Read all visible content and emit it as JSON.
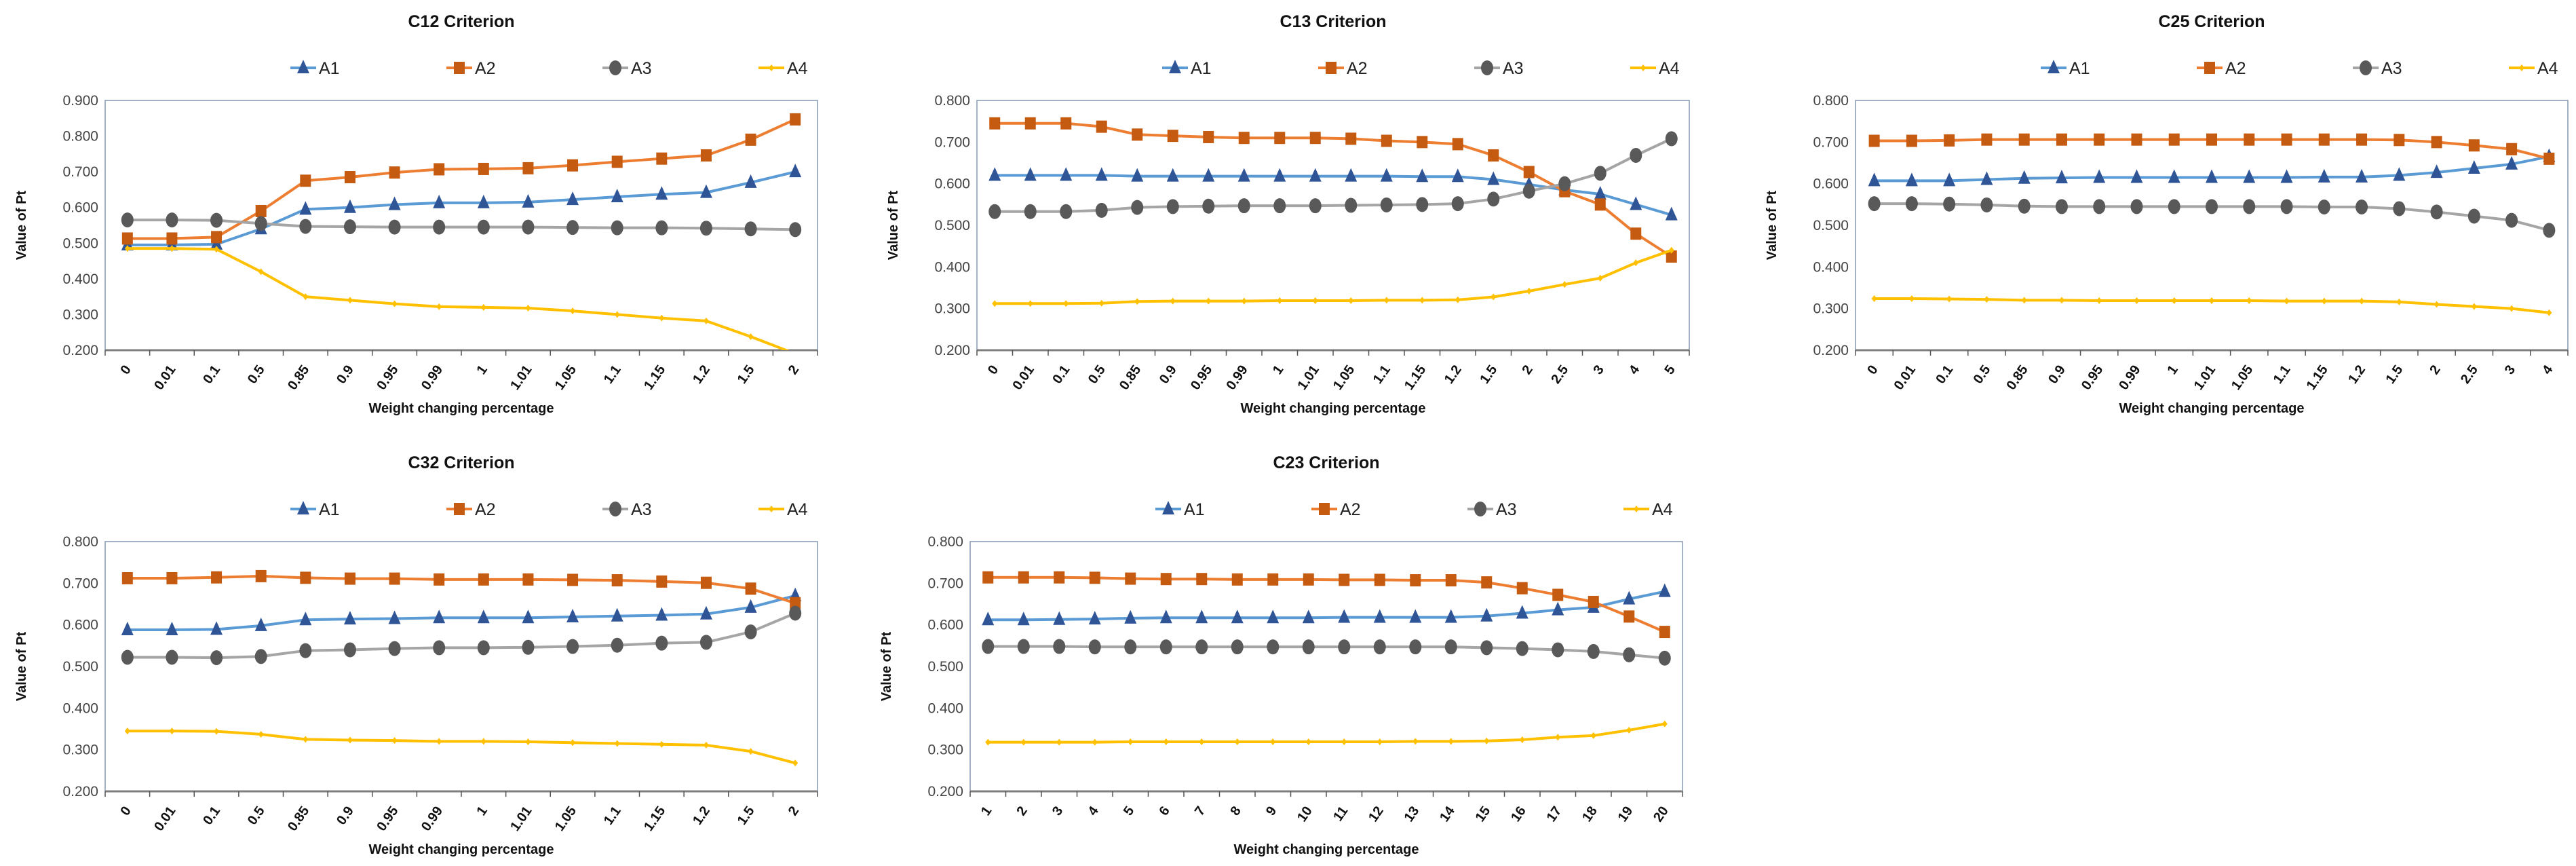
{
  "colors": {
    "A1_line": "#5b9bd5",
    "A1_marker": "#2f5597",
    "A2_line": "#ed7d31",
    "A2_marker": "#c55a11",
    "A3_line": "#a5a5a5",
    "A3_marker": "#595959",
    "A4_line": "#ffc000",
    "A4_marker": "#ffc000"
  },
  "chart_data": [
    {
      "type": "line",
      "title": "C12 Criterion",
      "xlabel": "Weight changing percentage",
      "ylabel": "Value of Pt",
      "ylim": [
        0.2,
        0.9
      ],
      "yticks": [
        "0.200",
        "0.300",
        "0.400",
        "0.500",
        "0.600",
        "0.700",
        "0.800",
        "0.900"
      ],
      "legend": "top",
      "categories": [
        "0",
        "0.01",
        "0.1",
        "0.5",
        "0.85",
        "0.9",
        "0.95",
        "0.99",
        "1",
        "1.01",
        "1.05",
        "1.1",
        "1.15",
        "1.2",
        "1.5",
        "2"
      ],
      "series": [
        {
          "name": "A1",
          "values": [
            0.495,
            0.495,
            0.497,
            0.54,
            0.595,
            0.6,
            0.608,
            0.613,
            0.613,
            0.615,
            0.622,
            0.63,
            0.637,
            0.642,
            0.67,
            0.7
          ]
        },
        {
          "name": "A2",
          "values": [
            0.513,
            0.513,
            0.517,
            0.59,
            0.675,
            0.685,
            0.698,
            0.707,
            0.708,
            0.71,
            0.718,
            0.728,
            0.737,
            0.746,
            0.79,
            0.847
          ]
        },
        {
          "name": "A3",
          "values": [
            0.565,
            0.565,
            0.564,
            0.555,
            0.547,
            0.546,
            0.545,
            0.545,
            0.545,
            0.545,
            0.544,
            0.543,
            0.543,
            0.542,
            0.54,
            0.538
          ]
        },
        {
          "name": "A4",
          "values": [
            0.485,
            0.485,
            0.483,
            0.42,
            0.35,
            0.34,
            0.33,
            0.322,
            0.32,
            0.318,
            0.31,
            0.3,
            0.29,
            0.282,
            0.238,
            0.19
          ]
        }
      ]
    },
    {
      "type": "line",
      "title": "C13 Criterion",
      "xlabel": "Weight changing percentage",
      "ylabel": "Value of Pt",
      "ylim": [
        0.2,
        0.8
      ],
      "yticks": [
        "0.200",
        "0.300",
        "0.400",
        "0.500",
        "0.600",
        "0.700",
        "0.800"
      ],
      "legend": "top",
      "categories": [
        "0",
        "0.01",
        "0.1",
        "0.5",
        "0.85",
        "0.9",
        "0.95",
        "0.99",
        "1",
        "1.01",
        "1.05",
        "1.1",
        "1.15",
        "1.2",
        "1.5",
        "2",
        "2.5",
        "3",
        "4",
        "5"
      ],
      "series": [
        {
          "name": "A1",
          "values": [
            0.62,
            0.62,
            0.62,
            0.62,
            0.618,
            0.618,
            0.618,
            0.618,
            0.618,
            0.618,
            0.618,
            0.618,
            0.617,
            0.617,
            0.61,
            0.598,
            0.585,
            0.575,
            0.55,
            0.525
          ]
        },
        {
          "name": "A2",
          "values": [
            0.745,
            0.745,
            0.745,
            0.737,
            0.718,
            0.715,
            0.712,
            0.71,
            0.71,
            0.71,
            0.708,
            0.703,
            0.7,
            0.695,
            0.668,
            0.628,
            0.582,
            0.55,
            0.48,
            0.425
          ]
        },
        {
          "name": "A3",
          "values": [
            0.533,
            0.533,
            0.533,
            0.536,
            0.543,
            0.545,
            0.546,
            0.547,
            0.547,
            0.547,
            0.548,
            0.549,
            0.55,
            0.552,
            0.563,
            0.582,
            0.6,
            0.625,
            0.668,
            0.708
          ]
        },
        {
          "name": "A4",
          "values": [
            0.312,
            0.312,
            0.312,
            0.313,
            0.317,
            0.318,
            0.318,
            0.318,
            0.319,
            0.319,
            0.319,
            0.32,
            0.32,
            0.321,
            0.328,
            0.342,
            0.358,
            0.373,
            0.41,
            0.44
          ]
        }
      ]
    },
    {
      "type": "line",
      "title": "C25 Criterion",
      "xlabel": "Weight changing percentage",
      "ylabel": "Value of Pt",
      "ylim": [
        0.2,
        0.8
      ],
      "yticks": [
        "0.200",
        "0.300",
        "0.400",
        "0.500",
        "0.600",
        "0.700",
        "0.800"
      ],
      "legend": "top",
      "categories": [
        "0",
        "0.01",
        "0.1",
        "0.5",
        "0.85",
        "0.9",
        "0.95",
        "0.99",
        "1",
        "1.01",
        "1.05",
        "1.1",
        "1.15",
        "1.2",
        "1.5",
        "2",
        "2.5",
        "3",
        "4"
      ],
      "series": [
        {
          "name": "A1",
          "values": [
            0.607,
            0.607,
            0.607,
            0.61,
            0.613,
            0.614,
            0.615,
            0.615,
            0.615,
            0.615,
            0.615,
            0.615,
            0.616,
            0.616,
            0.62,
            0.627,
            0.637,
            0.647,
            0.665
          ]
        },
        {
          "name": "A2",
          "values": [
            0.703,
            0.703,
            0.704,
            0.706,
            0.706,
            0.706,
            0.706,
            0.706,
            0.706,
            0.706,
            0.706,
            0.706,
            0.706,
            0.706,
            0.705,
            0.7,
            0.692,
            0.683,
            0.66
          ]
        },
        {
          "name": "A3",
          "values": [
            0.552,
            0.552,
            0.551,
            0.549,
            0.546,
            0.545,
            0.545,
            0.545,
            0.545,
            0.545,
            0.545,
            0.545,
            0.544,
            0.544,
            0.54,
            0.532,
            0.522,
            0.512,
            0.488
          ]
        },
        {
          "name": "A4",
          "values": [
            0.324,
            0.324,
            0.323,
            0.322,
            0.32,
            0.32,
            0.319,
            0.319,
            0.319,
            0.319,
            0.319,
            0.318,
            0.318,
            0.318,
            0.316,
            0.31,
            0.305,
            0.3,
            0.29
          ]
        }
      ]
    },
    {
      "type": "line",
      "title": "C32 Criterion",
      "xlabel": "Weight changing percentage",
      "ylabel": "Value of Pt",
      "ylim": [
        0.2,
        0.8
      ],
      "yticks": [
        "0.200",
        "0.300",
        "0.400",
        "0.500",
        "0.600",
        "0.700",
        "0.800"
      ],
      "legend": "top",
      "categories": [
        "0",
        "0.01",
        "0.1",
        "0.5",
        "0.85",
        "0.9",
        "0.95",
        "0.99",
        "1",
        "1.01",
        "1.05",
        "1.1",
        "1.15",
        "1.2",
        "1.5",
        "2"
      ],
      "series": [
        {
          "name": "A1",
          "values": [
            0.588,
            0.588,
            0.589,
            0.598,
            0.612,
            0.614,
            0.615,
            0.617,
            0.617,
            0.617,
            0.619,
            0.621,
            0.623,
            0.626,
            0.642,
            0.67
          ]
        },
        {
          "name": "A2",
          "values": [
            0.712,
            0.712,
            0.714,
            0.717,
            0.713,
            0.711,
            0.711,
            0.709,
            0.709,
            0.709,
            0.708,
            0.707,
            0.704,
            0.701,
            0.687,
            0.652
          ]
        },
        {
          "name": "A3",
          "values": [
            0.522,
            0.522,
            0.521,
            0.524,
            0.538,
            0.54,
            0.543,
            0.545,
            0.545,
            0.546,
            0.548,
            0.551,
            0.556,
            0.558,
            0.583,
            0.628
          ]
        },
        {
          "name": "A4",
          "values": [
            0.345,
            0.345,
            0.344,
            0.337,
            0.325,
            0.323,
            0.322,
            0.32,
            0.32,
            0.319,
            0.317,
            0.315,
            0.313,
            0.311,
            0.296,
            0.268
          ]
        }
      ]
    },
    {
      "type": "line",
      "title": "C23 Criterion",
      "xlabel": "Weight changing percentage",
      "ylabel": "Value of Pt",
      "ylim": [
        0.2,
        0.8
      ],
      "yticks": [
        "0.200",
        "0.300",
        "0.400",
        "0.500",
        "0.600",
        "0.700",
        "0.800"
      ],
      "legend": "top",
      "categories": [
        "1",
        "2",
        "3",
        "4",
        "5",
        "6",
        "7",
        "8",
        "9",
        "10",
        "11",
        "12",
        "13",
        "14",
        "15",
        "16",
        "17",
        "18",
        "19",
        "20"
      ],
      "series": [
        {
          "name": "A1",
          "values": [
            0.612,
            0.612,
            0.613,
            0.614,
            0.616,
            0.617,
            0.617,
            0.617,
            0.617,
            0.617,
            0.618,
            0.618,
            0.618,
            0.618,
            0.621,
            0.628,
            0.636,
            0.642,
            0.662,
            0.68
          ]
        },
        {
          "name": "A2",
          "values": [
            0.714,
            0.714,
            0.714,
            0.713,
            0.711,
            0.71,
            0.71,
            0.709,
            0.709,
            0.709,
            0.708,
            0.708,
            0.707,
            0.707,
            0.702,
            0.688,
            0.672,
            0.655,
            0.62,
            0.583
          ]
        },
        {
          "name": "A3",
          "values": [
            0.548,
            0.548,
            0.548,
            0.547,
            0.547,
            0.547,
            0.547,
            0.547,
            0.547,
            0.547,
            0.547,
            0.547,
            0.547,
            0.547,
            0.545,
            0.543,
            0.54,
            0.536,
            0.528,
            0.52
          ]
        },
        {
          "name": "A4",
          "values": [
            0.318,
            0.318,
            0.318,
            0.318,
            0.319,
            0.319,
            0.319,
            0.319,
            0.319,
            0.319,
            0.319,
            0.319,
            0.32,
            0.32,
            0.321,
            0.324,
            0.33,
            0.334,
            0.347,
            0.362
          ]
        }
      ]
    }
  ]
}
